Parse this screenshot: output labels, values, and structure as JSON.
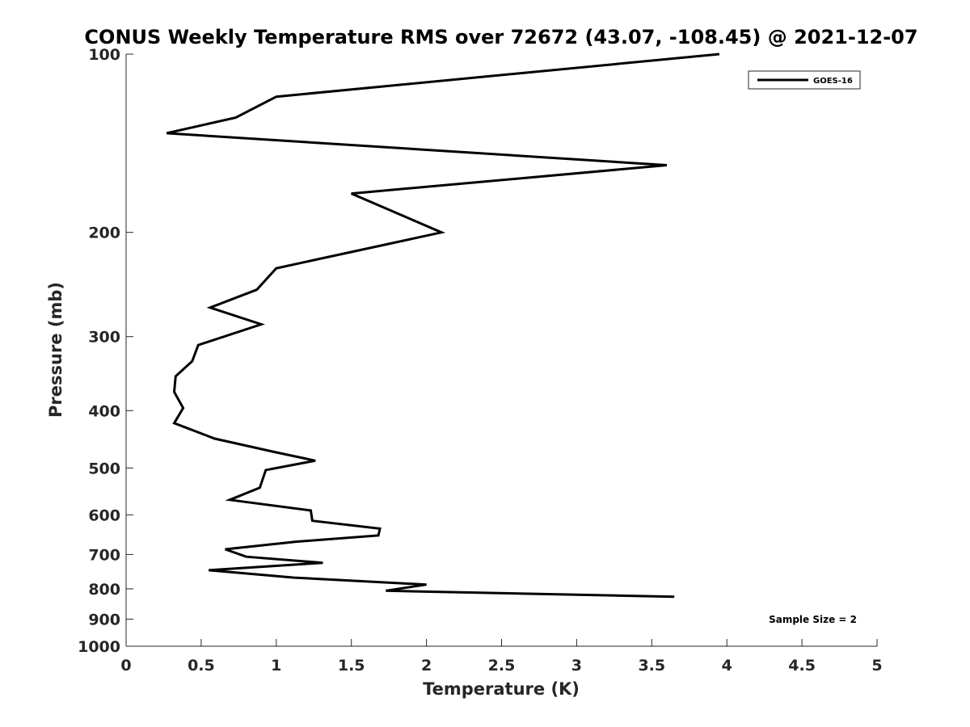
{
  "chart_data": {
    "type": "line",
    "title": "CONUS Weekly Temperature RMS over 72672 (43.07, -108.45) @ 2021-12-07",
    "xlabel": "Temperature (K)",
    "ylabel": "Pressure (mb)",
    "xlim": [
      0,
      5
    ],
    "ylim": [
      100,
      1000
    ],
    "y_scale": "log",
    "y_reversed": true,
    "x_ticks": [
      0,
      0.5,
      1,
      1.5,
      2,
      2.5,
      3,
      3.5,
      4,
      4.5,
      5
    ],
    "x_tick_labels": [
      "0",
      "0.5",
      "1",
      "1.5",
      "2",
      "2.5",
      "3",
      "3.5",
      "4",
      "4.5",
      "5"
    ],
    "y_ticks": [
      100,
      200,
      300,
      400,
      500,
      600,
      700,
      800,
      900,
      1000
    ],
    "y_tick_labels": [
      "100",
      "200",
      "300",
      "400",
      "500",
      "600",
      "700",
      "800",
      "900",
      "1000"
    ],
    "grid": false,
    "legend_position": "top-right",
    "annotation": "Sample Size = 2",
    "series": [
      {
        "name": "GOES-16",
        "color": "#000000",
        "points": [
          [
            3.95,
            100
          ],
          [
            1.0,
            118
          ],
          [
            0.73,
            128
          ],
          [
            0.27,
            136
          ],
          [
            3.6,
            154
          ],
          [
            1.5,
            172
          ],
          [
            2.1,
            200
          ],
          [
            1.0,
            230
          ],
          [
            0.87,
            250
          ],
          [
            0.56,
            268
          ],
          [
            0.9,
            286
          ],
          [
            0.48,
            310
          ],
          [
            0.44,
            330
          ],
          [
            0.33,
            350
          ],
          [
            0.32,
            372
          ],
          [
            0.38,
            396
          ],
          [
            0.32,
            420
          ],
          [
            0.59,
            446
          ],
          [
            0.99,
            470
          ],
          [
            1.26,
            486
          ],
          [
            0.93,
            504
          ],
          [
            0.89,
            540
          ],
          [
            0.69,
            566
          ],
          [
            1.23,
            590
          ],
          [
            1.24,
            614
          ],
          [
            1.69,
            633
          ],
          [
            1.68,
            650
          ],
          [
            1.13,
            666
          ],
          [
            0.66,
            686
          ],
          [
            0.8,
            706
          ],
          [
            1.31,
            723
          ],
          [
            0.55,
            744
          ],
          [
            1.12,
            766
          ],
          [
            2.0,
            787
          ],
          [
            1.73,
            806
          ],
          [
            3.65,
            825
          ]
        ]
      }
    ]
  }
}
